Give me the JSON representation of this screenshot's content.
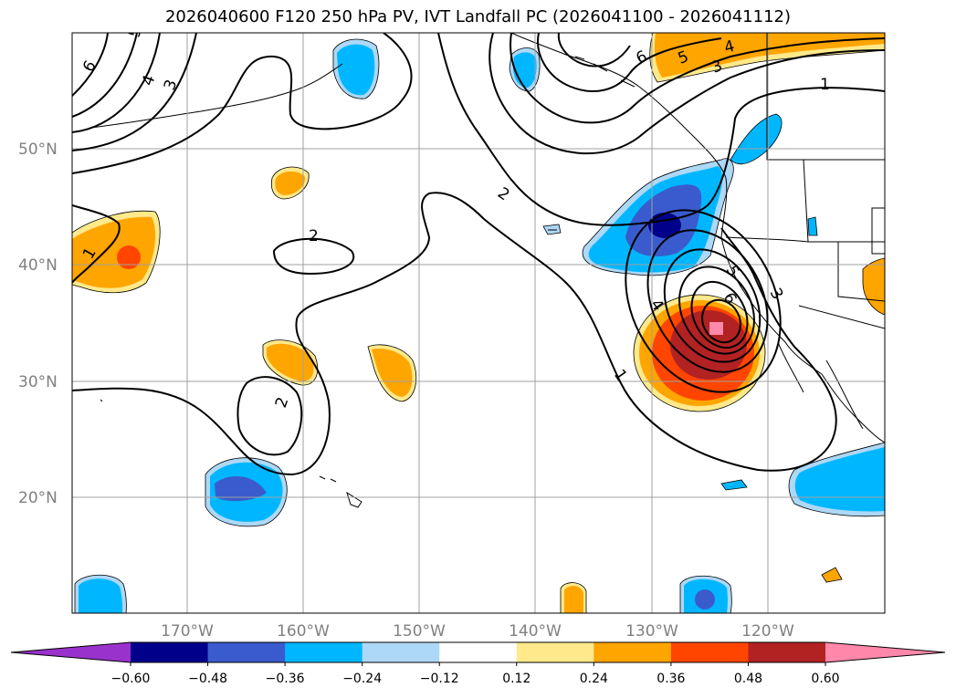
{
  "title": "2026040600 F120 250 hPa PV, IVT Landfall PC (2026041100 - 2026041112)",
  "latitude_labels": [
    "50°N",
    "40°N",
    "30°N",
    "20°N"
  ],
  "longitude_labels": [
    "170°W",
    "160°W",
    "150°W",
    "140°W",
    "130°W",
    "120°W"
  ],
  "contour_labels": [
    "6",
    "5",
    "4",
    "3",
    "1",
    "2",
    "1",
    "2",
    "5",
    "4",
    "3",
    "6",
    "5",
    "4",
    "1",
    "2",
    "6",
    "3"
  ],
  "colorbar": {
    "ticks": [
      "−0.60",
      "−0.48",
      "−0.36",
      "−0.24",
      "−0.12",
      "0.12",
      "0.24",
      "0.36",
      "0.48",
      "0.60"
    ],
    "colors": [
      "#9932cc",
      "#00008b",
      "#3a5bcd",
      "#00b7ff",
      "#add8f7",
      "#ffffff",
      "#ffe98a",
      "#ffa500",
      "#ff4500",
      "#b22222",
      "#ff88aa"
    ]
  }
}
